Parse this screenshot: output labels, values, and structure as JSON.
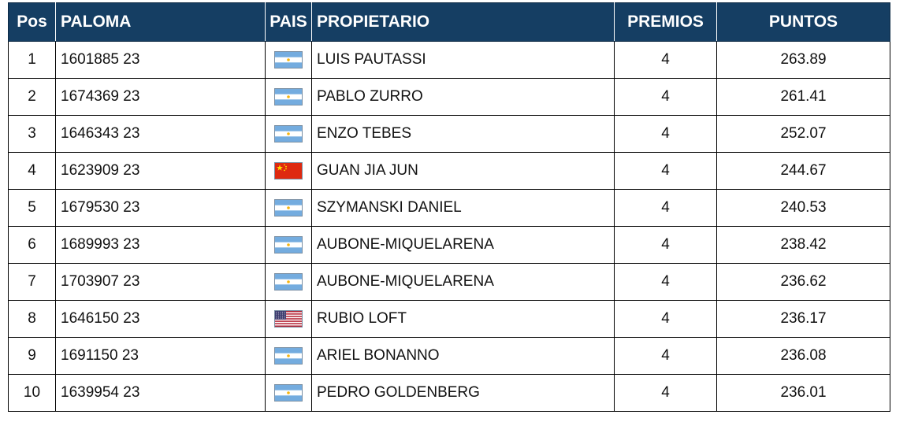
{
  "headers": {
    "pos": "Pos",
    "paloma": "PALOMA",
    "pais": "PAIS",
    "propietario": "PROPIETARIO",
    "premios": "PREMIOS",
    "puntos": "PUNTOS"
  },
  "rows": [
    {
      "pos": "1",
      "paloma": "1601885 23",
      "flag": "argentina-flag-icon",
      "propietario": "LUIS PAUTASSI",
      "premios": "4",
      "puntos": "263.89"
    },
    {
      "pos": "2",
      "paloma": "1674369 23",
      "flag": "argentina-flag-icon",
      "propietario": "PABLO ZURRO",
      "premios": "4",
      "puntos": "261.41"
    },
    {
      "pos": "3",
      "paloma": "1646343 23",
      "flag": "argentina-flag-icon",
      "propietario": "ENZO TEBES",
      "premios": "4",
      "puntos": "252.07"
    },
    {
      "pos": "4",
      "paloma": "1623909 23",
      "flag": "china-flag-icon",
      "propietario": "GUAN JIA JUN",
      "premios": "4",
      "puntos": "244.67"
    },
    {
      "pos": "5",
      "paloma": "1679530 23",
      "flag": "argentina-flag-icon",
      "propietario": "SZYMANSKI DANIEL",
      "premios": "4",
      "puntos": "240.53"
    },
    {
      "pos": "6",
      "paloma": "1689993 23",
      "flag": "argentina-flag-icon",
      "propietario": "AUBONE-MIQUELARENA",
      "premios": "4",
      "puntos": "238.42"
    },
    {
      "pos": "7",
      "paloma": "1703907 23",
      "flag": "argentina-flag-icon",
      "propietario": "AUBONE-MIQUELARENA",
      "premios": "4",
      "puntos": "236.62"
    },
    {
      "pos": "8",
      "paloma": "1646150 23",
      "flag": "usa-flag-icon",
      "propietario": "RUBIO LOFT",
      "premios": "4",
      "puntos": "236.17"
    },
    {
      "pos": "9",
      "paloma": "1691150 23",
      "flag": "argentina-flag-icon",
      "propietario": "ARIEL BONANNO",
      "premios": "4",
      "puntos": "236.08"
    },
    {
      "pos": "10",
      "paloma": "1639954 23",
      "flag": "argentina-flag-icon",
      "propietario": "PEDRO GOLDENBERG",
      "premios": "4",
      "puntos": "236.01"
    }
  ],
  "colors": {
    "header_bg": "#153e63",
    "header_text": "#ffffff",
    "border": "#000000"
  }
}
